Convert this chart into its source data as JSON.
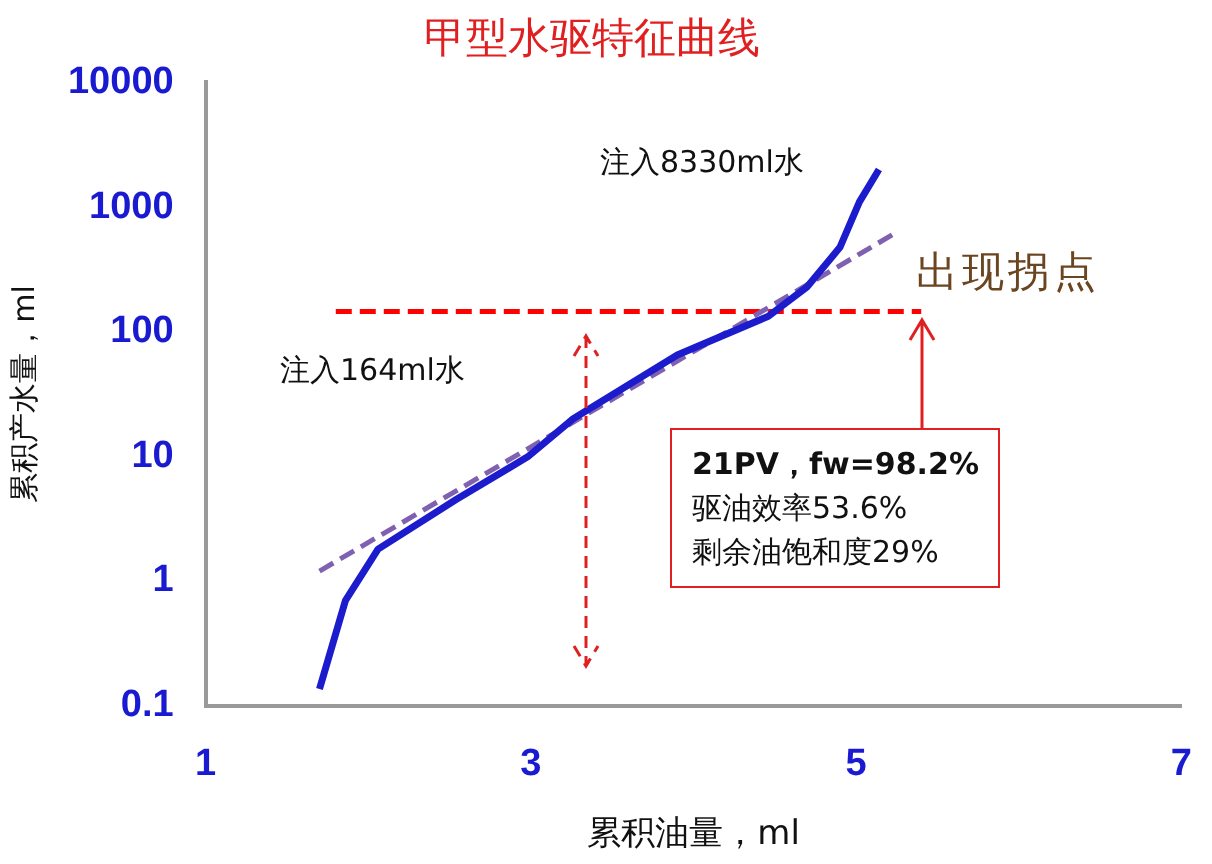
{
  "chart_data": {
    "type": "line",
    "title": "甲型水驱特征曲线",
    "xlabel": "累积油量，ml",
    "ylabel": "累积产水量，ml",
    "xlim": [
      1,
      7
    ],
    "xticks": [
      1,
      3,
      5,
      7
    ],
    "ylim": [
      0.1,
      10000
    ],
    "yticks": [
      0.1,
      1,
      10,
      100,
      1000,
      10000
    ],
    "log": "y",
    "grid": false,
    "legend": false,
    "marker": "none",
    "series": [
      {
        "color": "#1c1ccc",
        "line_style": "solid",
        "x": [
          1.7,
          1.86,
          2.06,
          2.54,
          2.98,
          3.26,
          3.9,
          4.46,
          4.7,
          4.9,
          5.02,
          5.14
        ],
        "values": [
          0.136,
          0.7,
          1.8,
          4.5,
          9.9,
          20,
          65,
          133,
          230,
          475,
          1100,
          2000
        ]
      },
      {
        "color": "#8060b0",
        "line_style": "dashed",
        "x": [
          1.7,
          5.26
        ],
        "values": [
          1.2,
          640
        ]
      },
      {
        "color": "#ff0000",
        "line_style": "dashed",
        "x": [
          1.8,
          5.4
        ],
        "values": [
          145,
          145
        ]
      }
    ],
    "annotations": [
      "注入8330ml水",
      "注入164ml水",
      "出现拐点",
      "21PV，fw=98.2%",
      "驱油效率53.6%",
      "剩余油饱和度29%"
    ]
  }
}
